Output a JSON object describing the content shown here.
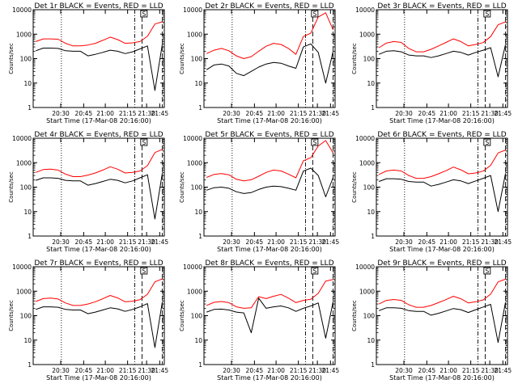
{
  "chart_data": [
    {
      "type": "line",
      "title": "Det 1r BLACK = Events, RED = LLD",
      "xlabel": "Start Time (17-Mar-08 20:16:00)",
      "ylabel": "Counts/sec",
      "yscale": "log",
      "ylim": [
        1,
        10000
      ],
      "x_ticks": [
        "20:30",
        "20:45",
        "21:00",
        "21:15",
        "21:30",
        "21:45"
      ],
      "y_ticks": [
        "1",
        "10",
        "100",
        "1000",
        "10000"
      ],
      "grid": false,
      "annotation": "S",
      "series": [
        {
          "color": "#ff0000",
          "values": [
            500,
            640,
            640,
            620,
            420,
            330,
            330,
            360,
            420,
            560,
            760,
            600,
            420,
            440,
            500,
            820,
            2600,
            3200
          ]
        },
        {
          "color": "#000000",
          "values": [
            210,
            270,
            270,
            260,
            210,
            200,
            200,
            130,
            150,
            180,
            220,
            200,
            160,
            190,
            250,
            330,
            5,
            400
          ]
        }
      ]
    },
    {
      "type": "line",
      "title": "Det 2r BLACK = Events, RED = LLD",
      "xlabel": "Start Time (17-Mar-08 20:16:00)",
      "ylabel": "Counts/sec",
      "yscale": "log",
      "ylim": [
        1,
        10000
      ],
      "x_ticks": [
        "20:30",
        "20:45",
        "21:00",
        "21:15",
        "21:30",
        "21:45"
      ],
      "y_ticks": [
        "1",
        "10",
        "100",
        "1000",
        "10000"
      ],
      "grid": false,
      "annotation": "S",
      "series": [
        {
          "color": "#ff0000",
          "values": [
            160,
            220,
            260,
            210,
            130,
            100,
            120,
            200,
            320,
            420,
            380,
            260,
            150,
            800,
            1100,
            5000,
            7500,
            1500
          ]
        },
        {
          "color": "#000000",
          "values": [
            35,
            55,
            60,
            50,
            25,
            20,
            30,
            45,
            60,
            70,
            65,
            50,
            40,
            300,
            400,
            180,
            10,
            200
          ]
        }
      ]
    },
    {
      "type": "line",
      "title": "Det 3r BLACK = Events, RED = LLD",
      "xlabel": "Start Time (17-Mar-08 20:16:00)",
      "ylabel": "Counts/sec",
      "yscale": "log",
      "ylim": [
        1,
        10000
      ],
      "x_ticks": [
        "20:30",
        "20:45",
        "21:00",
        "21:15",
        "21:30",
        "21:45"
      ],
      "y_ticks": [
        "1",
        "10",
        "100",
        "1000",
        "10000"
      ],
      "grid": false,
      "annotation": "S",
      "series": [
        {
          "color": "#ff0000",
          "values": [
            280,
            430,
            500,
            460,
            260,
            190,
            190,
            240,
            330,
            460,
            640,
            500,
            330,
            380,
            450,
            800,
            2400,
            3200
          ]
        },
        {
          "color": "#000000",
          "values": [
            150,
            200,
            210,
            190,
            140,
            130,
            130,
            110,
            130,
            160,
            200,
            180,
            140,
            180,
            220,
            280,
            18,
            380
          ]
        }
      ]
    },
    {
      "type": "line",
      "title": "Det 4r BLACK = Events, RED = LLD",
      "xlabel": "Start Time (17-Mar-08 20:16:00)",
      "ylabel": "Counts/sec",
      "yscale": "log",
      "ylim": [
        1,
        10000
      ],
      "x_ticks": [
        "20:30",
        "20:45",
        "21:00",
        "21:15",
        "21:30",
        "21:45"
      ],
      "y_ticks": [
        "1",
        "10",
        "100",
        "1000",
        "10000"
      ],
      "grid": false,
      "annotation": "S",
      "series": [
        {
          "color": "#ff0000",
          "values": [
            400,
            520,
            540,
            500,
            340,
            270,
            270,
            310,
            380,
            500,
            680,
            540,
            380,
            400,
            460,
            760,
            2600,
            3500
          ]
        },
        {
          "color": "#000000",
          "values": [
            190,
            240,
            240,
            230,
            190,
            180,
            180,
            120,
            140,
            170,
            210,
            190,
            150,
            180,
            240,
            320,
            5,
            380
          ]
        }
      ]
    },
    {
      "type": "line",
      "title": "Det 5r BLACK = Events, RED = LLD",
      "xlabel": "Start Time (17-Mar-08 20:16:00)",
      "ylabel": "Counts/sec",
      "yscale": "log",
      "ylim": [
        1,
        10000
      ],
      "x_ticks": [
        "20:30",
        "20:45",
        "21:00",
        "21:15",
        "21:30",
        "21:45"
      ],
      "y_ticks": [
        "1",
        "10",
        "100",
        "1000",
        "10000"
      ],
      "grid": false,
      "annotation": "S",
      "series": [
        {
          "color": "#ff0000",
          "values": [
            250,
            330,
            360,
            320,
            210,
            180,
            200,
            280,
            400,
            500,
            460,
            340,
            240,
            1200,
            1600,
            4800,
            8000,
            2500
          ]
        },
        {
          "color": "#000000",
          "values": [
            75,
            95,
            100,
            90,
            65,
            55,
            60,
            80,
            100,
            110,
            105,
            90,
            75,
            450,
            600,
            300,
            40,
            250
          ]
        }
      ]
    },
    {
      "type": "line",
      "title": "Det 6r BLACK = Events, RED = LLD",
      "xlabel": "Start Time (17-Mar-08 20:16:00)",
      "ylabel": "Counts/sec",
      "yscale": "log",
      "ylim": [
        1,
        10000
      ],
      "x_ticks": [
        "20:30",
        "20:45",
        "21:00",
        "21:15",
        "21:30",
        "21:45"
      ],
      "y_ticks": [
        "1",
        "10",
        "100",
        "1000",
        "10000"
      ],
      "grid": false,
      "annotation": "S",
      "series": [
        {
          "color": "#ff0000",
          "values": [
            330,
            460,
            500,
            460,
            300,
            230,
            230,
            270,
            350,
            470,
            660,
            510,
            350,
            380,
            450,
            780,
            2500,
            3300
          ]
        },
        {
          "color": "#000000",
          "values": [
            170,
            220,
            220,
            210,
            170,
            160,
            160,
            110,
            130,
            160,
            200,
            180,
            140,
            180,
            230,
            300,
            10,
            370
          ]
        }
      ]
    },
    {
      "type": "line",
      "title": "Det 7r BLACK = Events, RED = LLD",
      "xlabel": "Start Time (17-Mar-08 20:16:00)",
      "ylabel": "Counts/sec",
      "yscale": "log",
      "ylim": [
        1,
        10000
      ],
      "x_ticks": [
        "20:30",
        "20:45",
        "21:00",
        "21:15",
        "21:30",
        "21:45"
      ],
      "y_ticks": [
        "1",
        "10",
        "100",
        "1000",
        "10000"
      ],
      "grid": false,
      "annotation": "S",
      "series": [
        {
          "color": "#ff0000",
          "values": [
            380,
            500,
            520,
            480,
            330,
            260,
            260,
            300,
            370,
            490,
            670,
            530,
            370,
            390,
            450,
            750,
            2400,
            3200
          ]
        },
        {
          "color": "#000000",
          "values": [
            180,
            230,
            230,
            220,
            180,
            170,
            170,
            120,
            140,
            170,
            210,
            190,
            150,
            180,
            230,
            310,
            5,
            370
          ]
        }
      ]
    },
    {
      "type": "line",
      "title": "Det 8r BLACK = Events, RED = LLD",
      "xlabel": "Start Time (17-Mar-08 20:16:00)",
      "ylabel": "Counts/sec",
      "yscale": "log",
      "ylim": [
        1,
        10000
      ],
      "x_ticks": [
        "20:30",
        "20:45",
        "21:00",
        "21:15",
        "21:30",
        "21:45"
      ],
      "y_ticks": [
        "1",
        "10",
        "100",
        "1000",
        "10000"
      ],
      "grid": false,
      "annotation": "S",
      "series": [
        {
          "color": "#ff0000",
          "values": [
            260,
            350,
            380,
            340,
            230,
            200,
            210,
            600,
            500,
            620,
            740,
            520,
            340,
            420,
            470,
            820,
            2600,
            3000
          ]
        },
        {
          "color": "#000000",
          "values": [
            140,
            180,
            185,
            170,
            140,
            130,
            20,
            520,
            200,
            230,
            250,
            210,
            150,
            200,
            250,
            330,
            12,
            380
          ]
        }
      ]
    },
    {
      "type": "line",
      "title": "Det 9r BLACK = Events, RED = LLD",
      "xlabel": "Start Time (17-Mar-08 20:16:00)",
      "ylabel": "Counts/sec",
      "yscale": "log",
      "ylim": [
        1,
        10000
      ],
      "x_ticks": [
        "20:30",
        "20:45",
        "21:00",
        "21:15",
        "21:30",
        "21:45"
      ],
      "y_ticks": [
        "1",
        "10",
        "100",
        "1000",
        "10000"
      ],
      "grid": false,
      "annotation": "S",
      "series": [
        {
          "color": "#ff0000",
          "values": [
            300,
            420,
            460,
            420,
            280,
            220,
            220,
            260,
            340,
            450,
            620,
            490,
            330,
            370,
            440,
            760,
            2400,
            3100
          ]
        },
        {
          "color": "#000000",
          "values": [
            160,
            210,
            210,
            200,
            160,
            150,
            150,
            105,
            125,
            155,
            195,
            175,
            135,
            175,
            225,
            290,
            8,
            360
          ]
        }
      ]
    }
  ]
}
